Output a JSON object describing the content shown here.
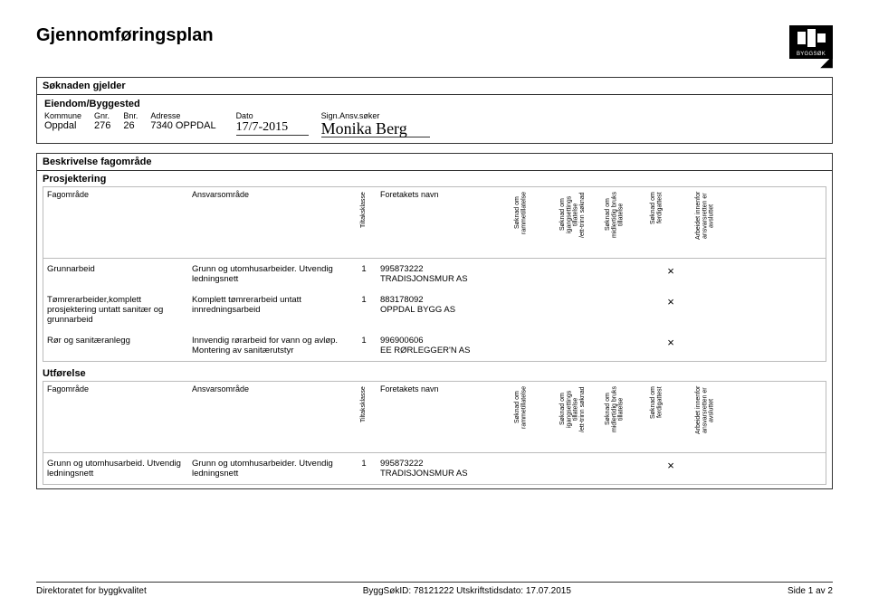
{
  "title": "Gjennomføringsplan",
  "logo_label": "BYGGSØK",
  "soknaden_gjelder": {
    "section_title": "Søknaden gjelder",
    "eiendom_title": "Eiendom/Byggested",
    "cols": {
      "kommune_lbl": "Kommune",
      "kommune_val": "Oppdal",
      "gnr_lbl": "Gnr.",
      "gnr_val": "276",
      "bnr_lbl": "Bnr.",
      "bnr_val": "26",
      "adresse_lbl": "Adresse",
      "adresse_val": "7340 OPPDAL",
      "dato_lbl": "Dato",
      "dato_val": "17/7-2015",
      "sign_lbl": "Sign.Ansv.søker",
      "sign_val": "Monika Berg"
    }
  },
  "beskrivelse": {
    "title": "Beskrivelse fagområde",
    "prosjektering_title": "Prosjektering",
    "utforelse_title": "Utførelse",
    "columns": {
      "fagomrade": "Fagområde",
      "ansvar": "Ansvarsområde",
      "tiltak": "Tiltaksklasse",
      "foretak": "Foretakets navn",
      "v1": "Søknad om\nrammetillatelse",
      "v2": "Søknad om\nigangsettings\ntillatelse\n/ett-trinn søknad",
      "v3": "Søknad om\nmidlertidig bruks\ntillatelse",
      "v4": "Søknad om\nferdigattest",
      "v5": "Arbeidet innenfor\nansvarsretten er\navsluttet"
    },
    "prosjektering_rows": [
      {
        "fag": "Grunnarbeid",
        "ansvar": "Grunn og utomhusarbeider. Utvendig ledningsnett",
        "kl": "1",
        "foretak": "995873222\nTRADISJONSMUR AS",
        "marks": [
          "",
          "",
          "",
          "×",
          ""
        ]
      },
      {
        "fag": "Tømrerarbeider,komplett prosjektering untatt sanitær og grunnarbeid",
        "ansvar": "Komplett tømrerarbeid untatt innredningsarbeid",
        "kl": "1",
        "foretak": "883178092\nOPPDAL BYGG AS",
        "marks": [
          "",
          "",
          "",
          "×",
          ""
        ]
      },
      {
        "fag": "Rør og sanitæranlegg",
        "ansvar": "Innvendig rørarbeid for vann og avløp. Montering av sanitærutstyr",
        "kl": "1",
        "foretak": "996900606\nEE RØRLEGGER'N AS",
        "marks": [
          "",
          "",
          "",
          "×",
          ""
        ]
      }
    ],
    "utforelse_rows": [
      {
        "fag": "Grunn og utomhusarbeid. Utvendig ledningsnett",
        "ansvar": "Grunn og utomhusarbeider. Utvendig ledningsnett",
        "kl": "1",
        "foretak": "995873222\nTRADISJONSMUR AS",
        "marks": [
          "",
          "",
          "",
          "×",
          ""
        ]
      }
    ]
  },
  "footer": {
    "left": "Direktoratet for byggkvalitet",
    "center": "ByggSøkID: 78121222 Utskriftstidsdato: 17.07.2015",
    "right": "Side 1 av 2"
  }
}
